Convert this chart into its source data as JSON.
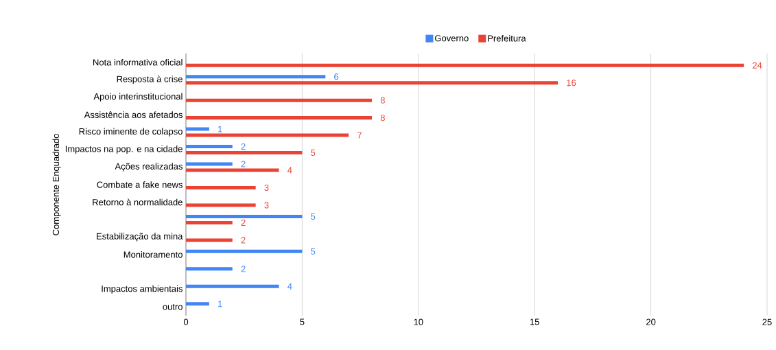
{
  "chart_data": {
    "type": "bar",
    "orientation": "horizontal",
    "ylabel": "Componente Enquadrado",
    "categories": [
      "Nota informativa oficial",
      "Resposta à crise",
      "Apoio interinstitucional",
      "Assistência aos afetados",
      "Risco iminente de colapso",
      "Impactos na pop. e na cidade",
      "Ações realizadas",
      "Combate a fake news",
      "Retorno à normalidade",
      null,
      "Estabilização da mina",
      "Monitoramento",
      null,
      "Impactos ambientais",
      "outro"
    ],
    "series": [
      {
        "name": "Governo",
        "color": "#4285f4",
        "values": [
          null,
          6,
          null,
          null,
          1,
          2,
          2,
          null,
          null,
          5,
          null,
          5,
          2,
          4,
          1
        ]
      },
      {
        "name": "Prefeitura",
        "color": "#ea4335",
        "values": [
          24,
          16,
          8,
          8,
          7,
          5,
          4,
          3,
          3,
          2,
          2,
          null,
          null,
          null,
          null
        ]
      }
    ],
    "xlim": [
      0,
      25
    ],
    "xticks": [
      0,
      5,
      10,
      15,
      20,
      25
    ],
    "grid": "x",
    "legend": "top",
    "data_labels": true
  }
}
